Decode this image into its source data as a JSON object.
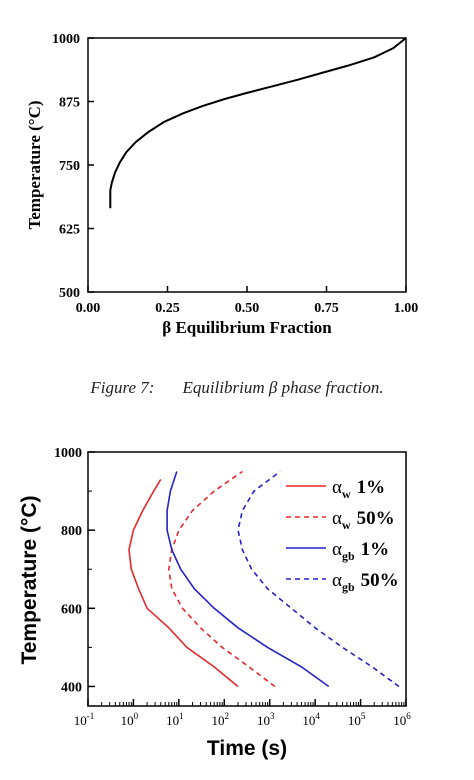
{
  "caption": {
    "number": "Figure 7:",
    "text": "Equilibrium β phase fraction."
  },
  "chart_data": [
    {
      "type": "line",
      "xlabel": "β Equilibrium Fraction",
      "ylabel": "Temperature (°C)",
      "xlim": [
        0,
        1
      ],
      "ylim": [
        500,
        1000
      ],
      "xticks": [
        "0.00",
        "0.25",
        "0.50",
        "0.75",
        "1.00"
      ],
      "yticks": [
        "500",
        "625",
        "750",
        "875",
        "1000"
      ],
      "grid": false,
      "color": "#000000",
      "series": [
        {
          "x": [
            0.07,
            0.07,
            0.075,
            0.085,
            0.1,
            0.12,
            0.15,
            0.19,
            0.24,
            0.3,
            0.36,
            0.43,
            0.5,
            0.58,
            0.66,
            0.74,
            0.82,
            0.9,
            0.96,
            1.0
          ],
          "y": [
            665,
            700,
            715,
            735,
            755,
            775,
            795,
            815,
            835,
            852,
            866,
            880,
            892,
            905,
            918,
            932,
            946,
            962,
            980,
            1000
          ]
        }
      ]
    },
    {
      "type": "line",
      "xlabel": "Time (s)",
      "ylabel": "Temperature (°C)",
      "xscale": "log",
      "xlim": [
        0.1,
        1000000
      ],
      "ylim": [
        350,
        1000
      ],
      "xticks": [
        {
          "base": "10",
          "exp": "-1"
        },
        {
          "base": "10",
          "exp": "0"
        },
        {
          "base": "10",
          "exp": "1"
        },
        {
          "base": "10",
          "exp": "2"
        },
        {
          "base": "10",
          "exp": "3"
        },
        {
          "base": "10",
          "exp": "4"
        },
        {
          "base": "10",
          "exp": "5"
        },
        {
          "base": "10",
          "exp": "6"
        }
      ],
      "yticks": [
        "400",
        "600",
        "800",
        "1000"
      ],
      "grid": false,
      "legend_position": "top-right",
      "series": [
        {
          "name": "α",
          "sub": "w",
          "pct": "1%",
          "color": "#e8282a",
          "dash": false,
          "x": [
            200,
            60,
            15,
            6,
            2,
            1.3,
            0.9,
            0.8,
            1,
            1.6,
            2.8,
            4
          ],
          "y": [
            400,
            450,
            500,
            550,
            600,
            650,
            700,
            750,
            800,
            850,
            900,
            930
          ]
        },
        {
          "name": "α",
          "sub": "w",
          "pct": "50%",
          "color": "#e8282a",
          "dash": true,
          "x": [
            1300,
            350,
            90,
            30,
            12,
            7,
            6,
            7,
            10,
            20,
            60,
            250
          ],
          "y": [
            400,
            450,
            500,
            550,
            600,
            650,
            700,
            750,
            800,
            850,
            900,
            950
          ]
        },
        {
          "name": "α",
          "sub": "gb",
          "pct": "1%",
          "color": "#2323c8",
          "dash": false,
          "x": [
            20000,
            5000,
            900,
            200,
            60,
            22,
            11,
            7,
            5.5,
            5.5,
            6.5,
            9
          ],
          "y": [
            400,
            450,
            500,
            550,
            600,
            650,
            700,
            750,
            800,
            850,
            900,
            950
          ]
        },
        {
          "name": "α",
          "sub": "gb",
          "pct": "50%",
          "color": "#2323c8",
          "dash": true,
          "x": [
            700000,
            180000,
            40000,
            10000,
            3000,
            900,
            400,
            250,
            200,
            250,
            450,
            1700
          ],
          "y": [
            400,
            450,
            500,
            550,
            600,
            650,
            700,
            750,
            800,
            850,
            900,
            950
          ]
        }
      ]
    }
  ]
}
